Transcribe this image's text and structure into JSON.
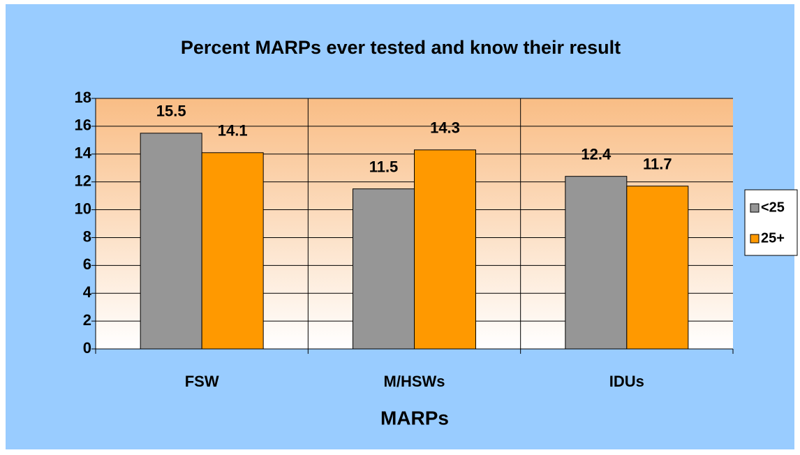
{
  "chart_data": {
    "type": "bar",
    "title": "Percent MARPs ever tested and know their result",
    "x_label": "MARPs",
    "categories": [
      "FSW",
      "M/HSWs",
      "IDUs"
    ],
    "series": [
      {
        "name": "<25",
        "color": "#969696",
        "values": [
          15.5,
          11.5,
          12.4
        ]
      },
      {
        "name": "25+",
        "color": "#ff9900",
        "values": [
          14.1,
          14.3,
          11.7
        ]
      }
    ],
    "ylim": [
      0,
      18
    ],
    "yticks": [
      0,
      2,
      4,
      6,
      8,
      10,
      12,
      14,
      16,
      18
    ],
    "grid": true,
    "legend": "right"
  }
}
